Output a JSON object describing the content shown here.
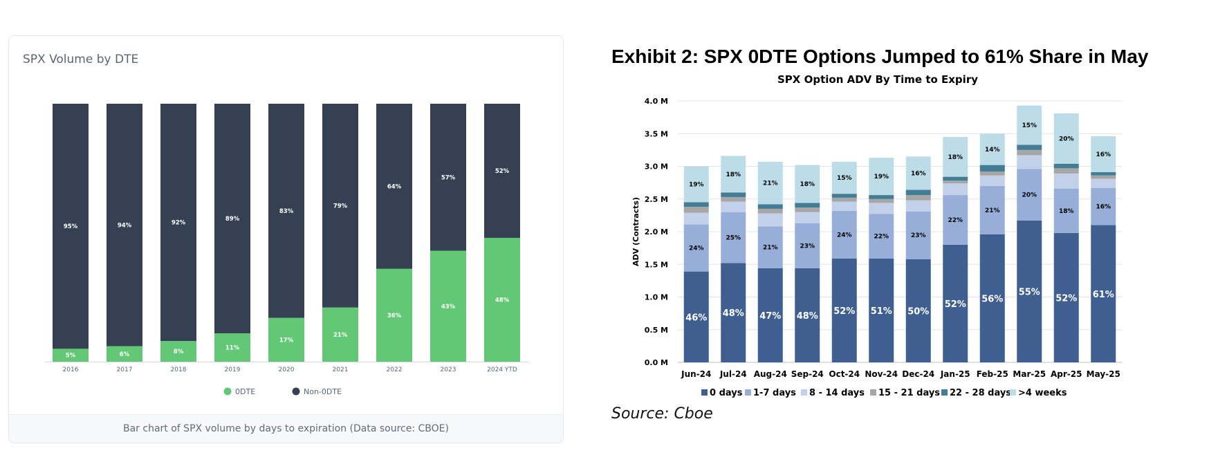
{
  "left_card": {
    "title": "SPX Volume by DTE",
    "caption": "Bar chart of SPX volume by days to expiration (Data source: CBOE)"
  },
  "right_panel": {
    "exhibit_title": "Exhibit 2: SPX 0DTE Options Jumped to 61% Share in May",
    "source": "Source: Cboe"
  },
  "chart_data": [
    {
      "type": "bar",
      "stacked": true,
      "title": "SPX Volume by DTE",
      "categories": [
        "2016",
        "2017",
        "2018",
        "2019",
        "2020",
        "2021",
        "2022",
        "2023",
        "2024 YTD"
      ],
      "series": [
        {
          "name": "0DTE",
          "color": "#63c876",
          "values": [
            5,
            6,
            8,
            11,
            17,
            21,
            36,
            43,
            48
          ]
        },
        {
          "name": "Non-0DTE",
          "color": "#354152",
          "values": [
            95,
            94,
            92,
            89,
            83,
            79,
            64,
            57,
            52
          ]
        }
      ],
      "data_labels": [
        [
          "5%",
          "6%",
          "8%",
          "11%",
          "17%",
          "21%",
          "36%",
          "43%",
          "48%"
        ],
        [
          "95%",
          "94%",
          "92%",
          "89%",
          "83%",
          "79%",
          "64%",
          "57%",
          "52%"
        ]
      ],
      "ylim": [
        0,
        100
      ],
      "legend": "bottom"
    },
    {
      "type": "bar",
      "stacked": true,
      "title": "SPX Option ADV By Time to Expiry",
      "xlabel": "",
      "ylabel": "ADV (Contracts)",
      "ylim": [
        0,
        4.0
      ],
      "yticks": [
        "0.0 M",
        "0.5 M",
        "1.0 M",
        "1.5 M",
        "2.0 M",
        "2.5 M",
        "3.0 M",
        "3.5 M",
        "4.0 M"
      ],
      "grid": true,
      "legend": "bottom",
      "categories": [
        "Jun-24",
        "Jul-24",
        "Aug-24",
        "Sep-24",
        "Oct-24",
        "Nov-24",
        "Dec-24",
        "Jan-25",
        "Feb-25",
        "Mar-25",
        "Apr-25",
        "May-25"
      ],
      "series": [
        {
          "name": "0 days",
          "color": "#3f5f91",
          "values": [
            1.39,
            1.52,
            1.44,
            1.44,
            1.59,
            1.59,
            1.58,
            1.8,
            1.96,
            2.17,
            1.98,
            2.1
          ],
          "labels": [
            "46%",
            "48%",
            "47%",
            "48%",
            "52%",
            "51%",
            "50%",
            "52%",
            "56%",
            "55%",
            "52%",
            "61%"
          ]
        },
        {
          "name": "1-7 days",
          "color": "#97aed8",
          "values": [
            0.72,
            0.78,
            0.64,
            0.69,
            0.73,
            0.68,
            0.73,
            0.76,
            0.74,
            0.79,
            0.68,
            0.57
          ],
          "labels": [
            "24%",
            "25%",
            "21%",
            "23%",
            "24%",
            "22%",
            "23%",
            "22%",
            "21%",
            "20%",
            "18%",
            "16%"
          ]
        },
        {
          "name": "8 - 14 days",
          "color": "#c2d0ea",
          "values": [
            0.18,
            0.16,
            0.2,
            0.17,
            0.14,
            0.17,
            0.17,
            0.18,
            0.16,
            0.21,
            0.23,
            0.14
          ]
        },
        {
          "name": "15 - 21 days",
          "color": "#a6a6a6",
          "values": [
            0.09,
            0.07,
            0.07,
            0.07,
            0.06,
            0.06,
            0.08,
            0.04,
            0.06,
            0.08,
            0.08,
            0.05
          ]
        },
        {
          "name": "22 - 28 days",
          "color": "#427c95",
          "values": [
            0.07,
            0.07,
            0.07,
            0.07,
            0.06,
            0.06,
            0.08,
            0.06,
            0.1,
            0.08,
            0.07,
            0.05
          ]
        },
        {
          "name": ">4 weeks",
          "color": "#bcdde7",
          "values": [
            0.55,
            0.56,
            0.65,
            0.58,
            0.49,
            0.57,
            0.51,
            0.61,
            0.48,
            0.6,
            0.77,
            0.55
          ],
          "labels": [
            "19%",
            "18%",
            "21%",
            "18%",
            "15%",
            "19%",
            "16%",
            "18%",
            "14%",
            "15%",
            "20%",
            "16%"
          ]
        }
      ]
    }
  ]
}
